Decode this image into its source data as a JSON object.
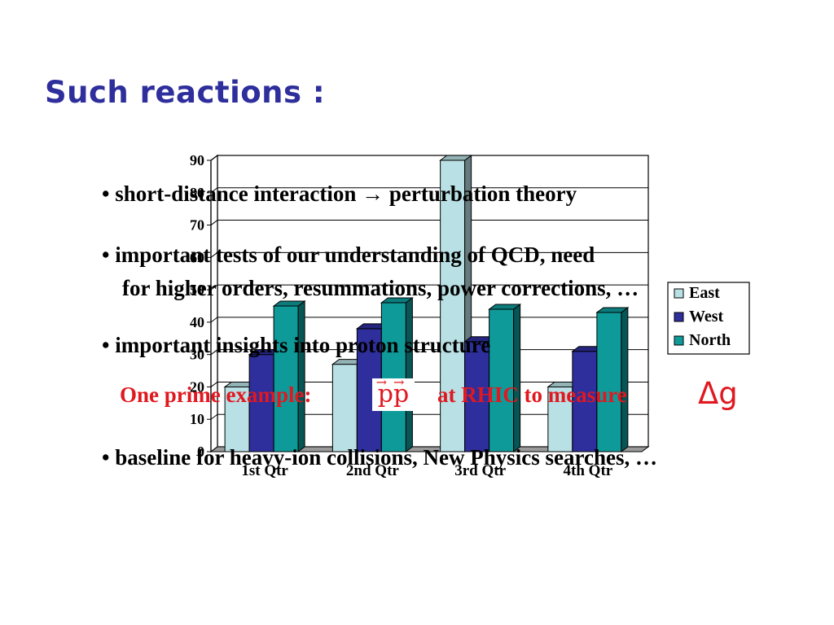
{
  "slide": {
    "title": "Such reactions :",
    "bullets": [
      "• short-distance interaction → perturbation theory",
      "• important tests of our understanding of QCD,  need",
      "for higher orders,  resummations,  power corrections, …",
      "• important insights into proton structure",
      "• baseline for heavy-ion collisions,  New Physics searches, …"
    ],
    "example_prefix": "One prime example:",
    "example_pp": "pp",
    "example_pp_arrows": "→→",
    "example_suffix": "at RHIC to measure",
    "example_symbol": "Δg"
  },
  "colors": {
    "title": "#2e2e9c",
    "example": "#e0181f",
    "east": "#b9e0e4",
    "west": "#2e2e9c",
    "north": "#0f9a9a"
  },
  "chart_data": {
    "type": "bar",
    "categories": [
      "1st Qtr",
      "2nd Qtr",
      "3rd Qtr",
      "4th Qtr"
    ],
    "series": [
      {
        "name": "East",
        "values": [
          20,
          27,
          90,
          20
        ]
      },
      {
        "name": "West",
        "values": [
          30,
          38,
          34,
          31
        ]
      },
      {
        "name": "North",
        "values": [
          45,
          46,
          44,
          43
        ]
      }
    ],
    "yticks": [
      "0",
      "10",
      "20",
      "30",
      "40",
      "50",
      "60",
      "70",
      "80",
      "90"
    ],
    "ylim": [
      0,
      90
    ],
    "grid": true,
    "legend": "right",
    "style": "3d"
  }
}
